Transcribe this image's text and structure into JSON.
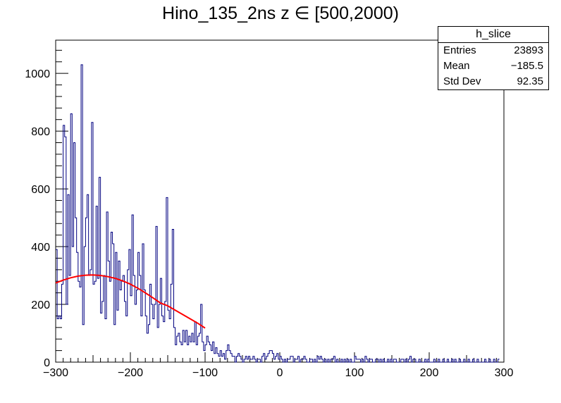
{
  "chart_data": {
    "type": "histogram",
    "title": "Hino_135_2ns z  ∈ [500,2000)",
    "xlabel": "",
    "ylabel": "",
    "xlim": [
      -300,
      300
    ],
    "ylim": [
      0,
      1115
    ],
    "xticks": [
      -300,
      -200,
      -100,
      0,
      100,
      200,
      300
    ],
    "yticks": [
      0,
      200,
      400,
      600,
      800,
      1000
    ],
    "xtick_labels": [
      "−300",
      "−200",
      "−100",
      "0",
      "100",
      "200",
      "300"
    ],
    "ytick_labels": [
      "0",
      "200",
      "400",
      "600",
      "800",
      "1000"
    ],
    "grid": false,
    "histogram": {
      "bin_width": 2,
      "x_start": -300,
      "line_color": "#000080",
      "counts": [
        390,
        150,
        160,
        150,
        270,
        820,
        780,
        200,
        580,
        300,
        860,
        400,
        760,
        500,
        380,
        280,
        260,
        1030,
        130,
        400,
        500,
        580,
        300,
        320,
        830,
        270,
        280,
        540,
        290,
        640,
        170,
        210,
        300,
        150,
        520,
        350,
        280,
        450,
        410,
        130,
        380,
        180,
        350,
        250,
        280,
        300,
        210,
        160,
        320,
        390,
        230,
        510,
        300,
        200,
        250,
        380,
        300,
        160,
        410,
        250,
        160,
        100,
        130,
        270,
        200,
        150,
        200,
        470,
        120,
        200,
        290,
        160,
        140,
        210,
        570,
        180,
        150,
        270,
        460,
        120,
        60,
        90,
        100,
        70,
        60,
        110,
        70,
        110,
        60,
        90,
        70,
        100,
        70,
        140,
        60,
        90,
        100,
        200,
        70,
        40,
        60,
        90,
        70,
        60,
        40,
        70,
        30,
        50,
        30,
        20,
        40,
        20,
        30,
        10,
        40,
        60,
        40,
        30,
        20,
        20,
        0,
        20,
        30,
        20,
        10,
        0,
        10,
        20,
        10,
        20,
        10,
        10,
        20,
        10,
        0,
        10,
        10,
        0,
        20,
        30,
        10,
        20,
        30,
        40,
        40,
        30,
        10,
        20,
        30,
        10,
        20,
        10,
        0,
        10,
        0,
        10,
        10,
        20,
        20,
        0,
        10,
        10,
        20,
        0,
        10,
        10,
        20,
        10,
        0,
        0,
        10,
        10,
        0,
        10,
        0,
        20,
        10,
        20,
        10,
        0,
        10,
        0,
        10,
        0,
        10,
        10,
        20,
        0,
        10,
        0,
        0,
        10,
        0,
        10,
        0,
        10,
        0,
        10,
        0,
        0,
        20,
        10,
        10,
        10,
        0,
        10,
        0,
        20,
        10,
        0,
        10,
        10,
        0,
        0,
        10,
        10,
        0,
        10,
        0,
        10,
        0,
        0,
        10,
        0,
        10,
        0,
        10,
        10,
        0,
        0,
        0,
        10,
        10,
        0,
        10,
        0,
        10,
        20,
        0,
        10,
        10,
        0,
        0,
        10,
        0,
        0,
        0,
        10,
        0,
        10,
        0,
        0,
        0,
        10,
        0,
        0,
        10,
        0,
        0,
        10,
        0,
        0,
        10,
        0,
        0,
        10,
        0,
        10,
        0,
        0,
        10,
        0,
        0,
        10,
        0,
        0,
        10,
        0,
        0,
        10,
        0,
        0,
        10,
        0,
        0,
        0,
        0,
        10,
        0,
        0,
        10,
        0,
        0,
        10,
        0,
        0,
        10
      ]
    },
    "fit": {
      "line_color": "#ff0000",
      "x": [
        -300,
        -290,
        -280,
        -270,
        -260,
        -250,
        -240,
        -230,
        -220,
        -210,
        -200,
        -190,
        -180,
        -170,
        -160,
        -150,
        -140,
        -130,
        -120,
        -110,
        -100
      ],
      "y": [
        274,
        284,
        292,
        298,
        301,
        302,
        300,
        296,
        290,
        281,
        270,
        256,
        240,
        223,
        205,
        195,
        180,
        165,
        150,
        135,
        118
      ]
    },
    "stats_box": {
      "name": "h_slice",
      "rows": [
        {
          "label": "Entries",
          "value": "23893"
        },
        {
          "label": "Mean",
          "value": "−185.5"
        },
        {
          "label": "Std Dev",
          "value": "92.35"
        }
      ]
    }
  }
}
